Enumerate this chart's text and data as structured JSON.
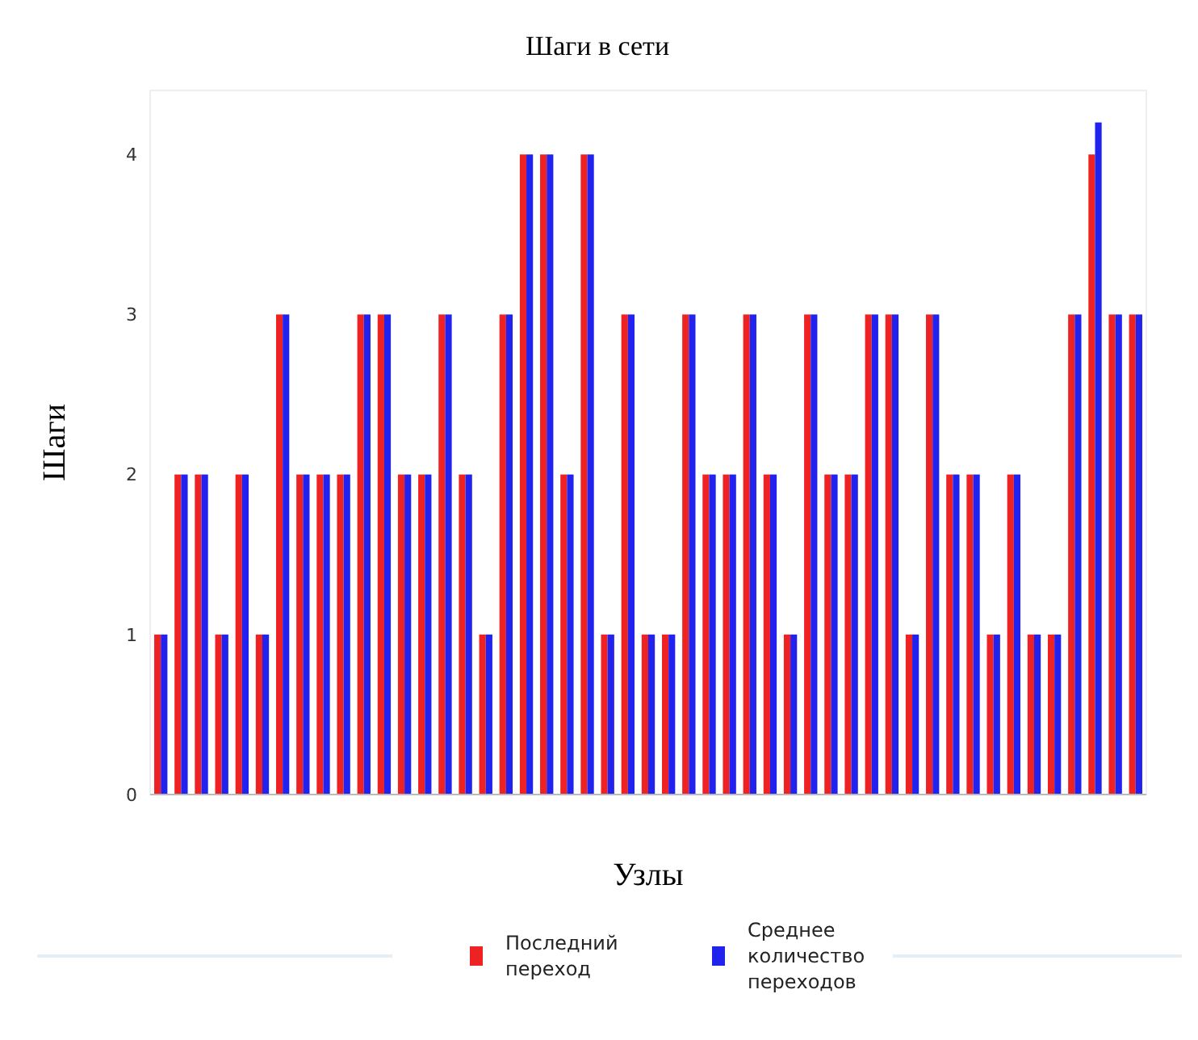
{
  "chart_data": {
    "type": "bar",
    "title": "Шаги в сети",
    "xlabel": "Узлы",
    "ylabel": "Шаги",
    "categories": [
      null,
      null,
      null,
      null,
      null,
      null,
      null,
      null,
      null,
      null,
      null,
      null,
      null,
      null,
      null,
      null,
      null,
      null,
      null,
      null,
      null,
      null,
      null,
      null,
      null,
      null,
      null,
      null,
      null,
      null,
      null,
      null,
      null,
      null,
      null,
      null,
      null,
      null,
      null,
      null,
      null,
      null,
      null,
      null,
      null,
      null,
      null,
      null,
      null
    ],
    "series": [
      {
        "name": "Последний переход",
        "color": "#ee2222",
        "values": [
          1,
          2,
          2,
          1,
          2,
          1,
          3,
          2,
          2,
          2,
          3,
          3,
          2,
          2,
          3,
          2,
          1,
          3,
          4,
          4,
          2,
          4,
          1,
          3,
          1,
          1,
          3,
          2,
          2,
          3,
          2,
          1,
          3,
          2,
          2,
          3,
          3,
          1,
          3,
          2,
          2,
          1,
          2,
          1,
          1,
          3,
          4,
          3,
          3
        ]
      },
      {
        "name": "Среднее количество переходов",
        "color": "#2222ee",
        "values": [
          1,
          2,
          2,
          1,
          2,
          1,
          3,
          2,
          2,
          2,
          3,
          3,
          2,
          2,
          3,
          2,
          1,
          3,
          4,
          4,
          2,
          4,
          1,
          3,
          1,
          1,
          3,
          2,
          2,
          3,
          2,
          1,
          3,
          2,
          2,
          3,
          3,
          1,
          3,
          2,
          2,
          1,
          2,
          1,
          1,
          3,
          4.2,
          3,
          3
        ]
      }
    ],
    "ylim": [
      0,
      4.4
    ],
    "yticks": [
      0,
      1,
      2,
      3,
      4
    ],
    "grid": false,
    "legend": "bottom"
  }
}
